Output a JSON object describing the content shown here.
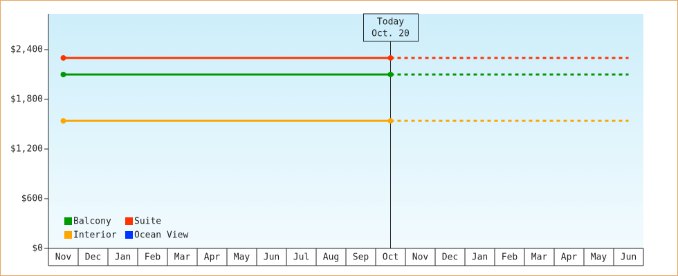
{
  "chart_data": {
    "type": "line",
    "categories": [
      "Nov",
      "Dec",
      "Jan",
      "Feb",
      "Mar",
      "Apr",
      "May",
      "Jun",
      "Jul",
      "Aug",
      "Sep",
      "Oct",
      "Nov",
      "Dec",
      "Jan",
      "Feb",
      "Mar",
      "Apr",
      "May",
      "Jun"
    ],
    "series": [
      {
        "name": "Balcony",
        "color": "#009900",
        "values": [
          2100,
          2100,
          2100,
          2100,
          2100,
          2100,
          2100,
          2100,
          2100,
          2100,
          2100,
          2100,
          null,
          null,
          null,
          null,
          null,
          null,
          null,
          null
        ],
        "forecast": [
          null,
          null,
          null,
          null,
          null,
          null,
          null,
          null,
          null,
          null,
          null,
          2100,
          2100,
          2100,
          2100,
          2100,
          2100,
          2100,
          2100,
          2100
        ]
      },
      {
        "name": "Suite",
        "color": "#ff3300",
        "values": [
          2300,
          2300,
          2300,
          2300,
          2300,
          2300,
          2300,
          2300,
          2300,
          2300,
          2300,
          2300,
          null,
          null,
          null,
          null,
          null,
          null,
          null,
          null
        ],
        "forecast": [
          null,
          null,
          null,
          null,
          null,
          null,
          null,
          null,
          null,
          null,
          null,
          2300,
          2300,
          2300,
          2300,
          2300,
          2300,
          2300,
          2300,
          2300
        ]
      },
      {
        "name": "Interior",
        "color": "#ffa500",
        "values": [
          1540,
          1540,
          1540,
          1540,
          1540,
          1540,
          1540,
          1540,
          1540,
          1540,
          1540,
          1540,
          null,
          null,
          null,
          null,
          null,
          null,
          null,
          null
        ],
        "forecast": [
          null,
          null,
          null,
          null,
          null,
          null,
          null,
          null,
          null,
          null,
          null,
          1540,
          1540,
          1540,
          1540,
          1540,
          1540,
          1540,
          1540,
          1540
        ]
      },
      {
        "name": "Ocean View",
        "color": "#0033ff",
        "values": [
          null,
          null,
          null,
          null,
          null,
          null,
          null,
          null,
          null,
          null,
          null,
          null,
          null,
          null,
          null,
          null,
          null,
          null,
          null,
          null
        ],
        "forecast": [
          null,
          null,
          null,
          null,
          null,
          null,
          null,
          null,
          null,
          null,
          null,
          null,
          null,
          null,
          null,
          null,
          null,
          null,
          null,
          null
        ]
      }
    ],
    "annotation": [
      "Today",
      "Oct. 20"
    ],
    "ylim": [
      0,
      2833
    ],
    "yticks": [
      {
        "value": 0,
        "label": "$0"
      },
      {
        "value": 600,
        "label": "$600"
      },
      {
        "value": 1200,
        "label": "$1,200"
      },
      {
        "value": 1800,
        "label": "$1,800"
      },
      {
        "value": 2400,
        "label": "$2,400"
      }
    ],
    "legend": "bottom-left"
  }
}
